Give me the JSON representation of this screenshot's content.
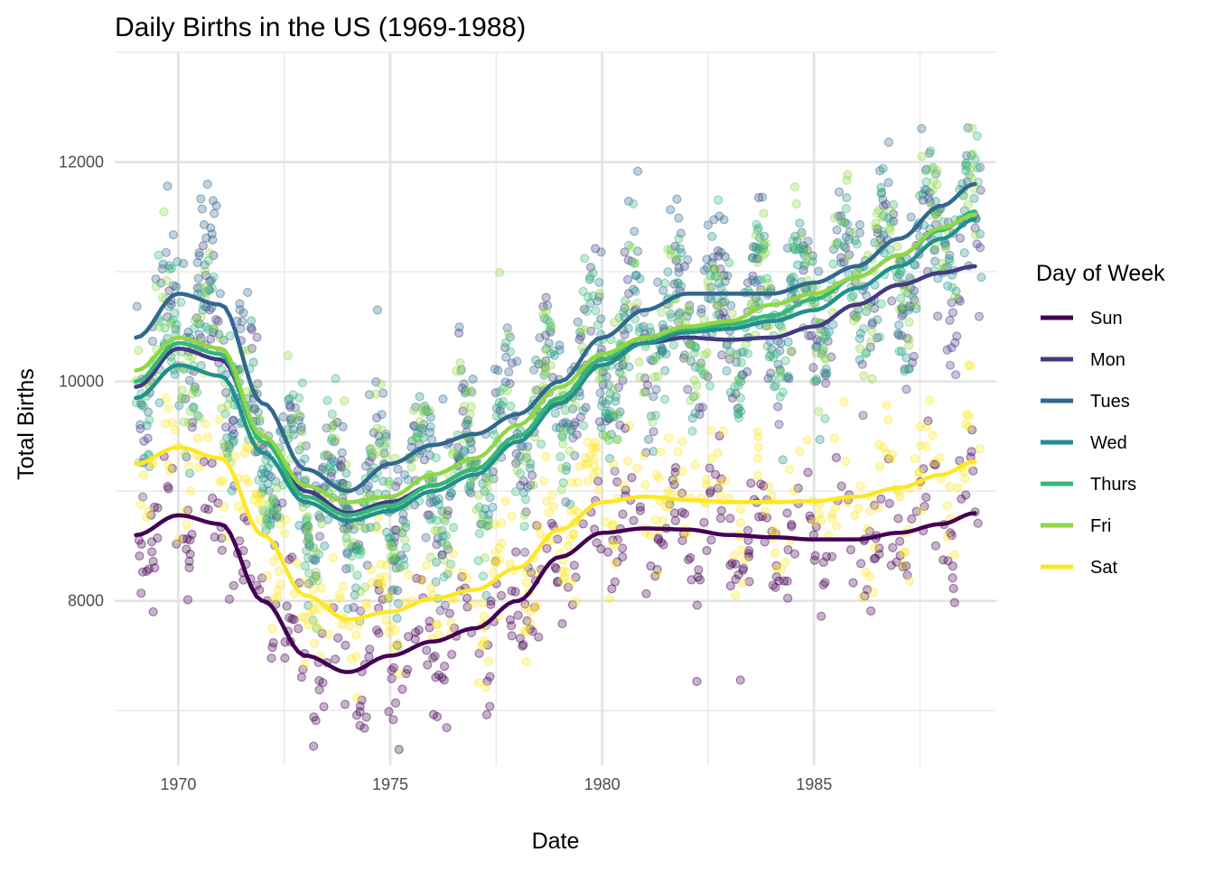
{
  "chart_data": {
    "type": "scatter",
    "title": "Daily Births in the US (1969-1988)",
    "xlabel": "Date",
    "ylabel": "Total Births",
    "xlim": [
      1968.5,
      1989.3
    ],
    "ylim": [
      6500,
      13000
    ],
    "x_ticks": [
      1970,
      1975,
      1980,
      1985
    ],
    "y_ticks": [
      8000,
      10000,
      12000
    ],
    "grid": true,
    "legend": {
      "title": "Day of Week",
      "position": "right"
    },
    "series": [
      {
        "name": "Sun",
        "color": "#440154",
        "trend": [
          [
            1969,
            8600
          ],
          [
            1970,
            8780
          ],
          [
            1971,
            8700
          ],
          [
            1972,
            8000
          ],
          [
            1973,
            7500
          ],
          [
            1974,
            7350
          ],
          [
            1975,
            7500
          ],
          [
            1976,
            7630
          ],
          [
            1977,
            7750
          ],
          [
            1978,
            8000
          ],
          [
            1979,
            8400
          ],
          [
            1980,
            8620
          ],
          [
            1981,
            8660
          ],
          [
            1982,
            8650
          ],
          [
            1983,
            8600
          ],
          [
            1984,
            8580
          ],
          [
            1985,
            8560
          ],
          [
            1986,
            8560
          ],
          [
            1987,
            8620
          ],
          [
            1988,
            8700
          ],
          [
            1988.8,
            8800
          ]
        ],
        "amp": 380,
        "noise": 240
      },
      {
        "name": "Mon",
        "color": "#443A83",
        "trend": [
          [
            1969,
            9950
          ],
          [
            1970,
            10300
          ],
          [
            1971,
            10200
          ],
          [
            1972,
            9500
          ],
          [
            1973,
            9000
          ],
          [
            1974,
            8800
          ],
          [
            1975,
            8900
          ],
          [
            1976,
            9050
          ],
          [
            1977,
            9200
          ],
          [
            1978,
            9500
          ],
          [
            1979,
            9800
          ],
          [
            1980,
            10200
          ],
          [
            1981,
            10350
          ],
          [
            1982,
            10400
          ],
          [
            1983,
            10380
          ],
          [
            1984,
            10400
          ],
          [
            1985,
            10500
          ],
          [
            1986,
            10700
          ],
          [
            1987,
            10880
          ],
          [
            1988,
            10990
          ],
          [
            1988.8,
            11050
          ]
        ],
        "amp": 520,
        "noise": 300
      },
      {
        "name": "Tues",
        "color": "#31688E",
        "trend": [
          [
            1969,
            10400
          ],
          [
            1970,
            10800
          ],
          [
            1971,
            10700
          ],
          [
            1972,
            9800
          ],
          [
            1973,
            9200
          ],
          [
            1974,
            9000
          ],
          [
            1975,
            9250
          ],
          [
            1976,
            9420
          ],
          [
            1977,
            9520
          ],
          [
            1978,
            9700
          ],
          [
            1979,
            10000
          ],
          [
            1980,
            10400
          ],
          [
            1981,
            10650
          ],
          [
            1982,
            10800
          ],
          [
            1983,
            10800
          ],
          [
            1984,
            10800
          ],
          [
            1985,
            10900
          ],
          [
            1986,
            11050
          ],
          [
            1987,
            11300
          ],
          [
            1988,
            11600
          ],
          [
            1988.8,
            11800
          ]
        ],
        "amp": 520,
        "noise": 300
      },
      {
        "name": "Wed",
        "color": "#21908C",
        "trend": [
          [
            1969,
            9850
          ],
          [
            1970,
            10150
          ],
          [
            1971,
            10050
          ],
          [
            1972,
            9350
          ],
          [
            1973,
            8900
          ],
          [
            1974,
            8730
          ],
          [
            1975,
            8820
          ],
          [
            1976,
            9000
          ],
          [
            1977,
            9150
          ],
          [
            1978,
            9450
          ],
          [
            1979,
            9800
          ],
          [
            1980,
            10150
          ],
          [
            1981,
            10350
          ],
          [
            1982,
            10450
          ],
          [
            1983,
            10480
          ],
          [
            1984,
            10550
          ],
          [
            1985,
            10650
          ],
          [
            1986,
            10850
          ],
          [
            1987,
            11050
          ],
          [
            1988,
            11300
          ],
          [
            1988.8,
            11480
          ]
        ],
        "amp": 520,
        "noise": 300
      },
      {
        "name": "Thurs",
        "color": "#35B779",
        "trend": [
          [
            1969,
            10000
          ],
          [
            1970,
            10350
          ],
          [
            1971,
            10250
          ],
          [
            1972,
            9450
          ],
          [
            1973,
            8950
          ],
          [
            1974,
            8780
          ],
          [
            1975,
            8870
          ],
          [
            1976,
            9050
          ],
          [
            1977,
            9200
          ],
          [
            1978,
            9500
          ],
          [
            1979,
            9850
          ],
          [
            1980,
            10200
          ],
          [
            1981,
            10400
          ],
          [
            1982,
            10480
          ],
          [
            1983,
            10520
          ],
          [
            1984,
            10600
          ],
          [
            1985,
            10750
          ],
          [
            1986,
            10950
          ],
          [
            1987,
            11150
          ],
          [
            1988,
            11380
          ],
          [
            1988.8,
            11550
          ]
        ],
        "amp": 520,
        "noise": 300
      },
      {
        "name": "Fri",
        "color": "#8FD744",
        "trend": [
          [
            1969,
            10100
          ],
          [
            1970,
            10400
          ],
          [
            1971,
            10300
          ],
          [
            1972,
            9500
          ],
          [
            1973,
            9050
          ],
          [
            1974,
            8900
          ],
          [
            1975,
            8950
          ],
          [
            1976,
            9150
          ],
          [
            1977,
            9300
          ],
          [
            1978,
            9600
          ],
          [
            1979,
            9950
          ],
          [
            1980,
            10250
          ],
          [
            1981,
            10400
          ],
          [
            1982,
            10500
          ],
          [
            1983,
            10550
          ],
          [
            1984,
            10700
          ],
          [
            1985,
            10800
          ],
          [
            1986,
            10950
          ],
          [
            1987,
            11150
          ],
          [
            1988,
            11400
          ],
          [
            1988.8,
            11520
          ]
        ],
        "amp": 520,
        "noise": 300
      },
      {
        "name": "Sat",
        "color": "#FDE725",
        "trend": [
          [
            1969,
            9250
          ],
          [
            1970,
            9400
          ],
          [
            1971,
            9300
          ],
          [
            1972,
            8600
          ],
          [
            1973,
            8050
          ],
          [
            1974,
            7830
          ],
          [
            1975,
            7900
          ],
          [
            1976,
            8020
          ],
          [
            1977,
            8100
          ],
          [
            1978,
            8300
          ],
          [
            1979,
            8650
          ],
          [
            1980,
            8900
          ],
          [
            1981,
            8950
          ],
          [
            1982,
            8920
          ],
          [
            1983,
            8900
          ],
          [
            1984,
            8900
          ],
          [
            1985,
            8910
          ],
          [
            1986,
            8950
          ],
          [
            1987,
            9030
          ],
          [
            1988,
            9150
          ],
          [
            1988.8,
            9270
          ]
        ],
        "amp": 420,
        "noise": 260
      }
    ]
  }
}
